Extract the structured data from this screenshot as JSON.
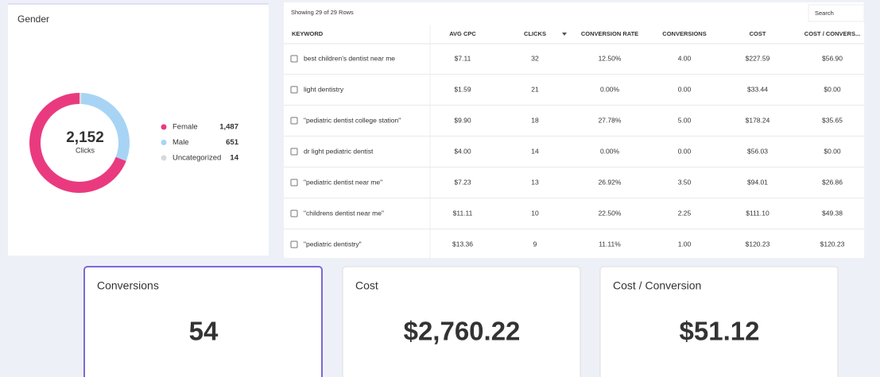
{
  "chart_data": {
    "type": "pie",
    "title": "Gender",
    "total": {
      "value": 2152,
      "label": "2,152"
    },
    "total_label": "Clicks",
    "categories": [
      "Female",
      "Male",
      "Uncategorized"
    ],
    "values": [
      1487,
      651,
      14
    ],
    "value_labels": [
      "1,487",
      "651",
      "14"
    ],
    "colors": [
      "#ea3a7f",
      "#a7d4f5",
      "#d9d9d9"
    ]
  },
  "table": {
    "status": "Showing 29 of 29 Rows",
    "search_placeholder": "Search",
    "columns": [
      "KEYWORD",
      "AVG CPC",
      "CLICKS",
      "CONVERSION RATE",
      "CONVERSIONS",
      "COST",
      "COST / CONVERS..."
    ],
    "rows": [
      [
        "best children's dentist near me",
        "$7.11",
        "32",
        "12.50%",
        "4.00",
        "$227.59",
        "$56.90"
      ],
      [
        "light dentistry",
        "$1.59",
        "21",
        "0.00%",
        "0.00",
        "$33.44",
        "$0.00"
      ],
      [
        "\"pediatric dentist college station\"",
        "$9.90",
        "18",
        "27.78%",
        "5.00",
        "$178.24",
        "$35.65"
      ],
      [
        "dr light pediatric dentist",
        "$4.00",
        "14",
        "0.00%",
        "0.00",
        "$56.03",
        "$0.00"
      ],
      [
        "\"pediatric dentist near me\"",
        "$7.23",
        "13",
        "26.92%",
        "3.50",
        "$94.01",
        "$26.86"
      ],
      [
        "\"childrens dentist near me\"",
        "$11.11",
        "10",
        "22.50%",
        "2.25",
        "$111.10",
        "$49.38"
      ],
      [
        "\"pediatric dentistry\"",
        "$13.36",
        "9",
        "11.11%",
        "1.00",
        "$120.23",
        "$120.23"
      ]
    ]
  },
  "cards": [
    {
      "title": "Conversions",
      "value": "54"
    },
    {
      "title": "Cost",
      "value": "$2,760.22"
    },
    {
      "title": "Cost / Conversion",
      "value": "$51.12"
    }
  ]
}
